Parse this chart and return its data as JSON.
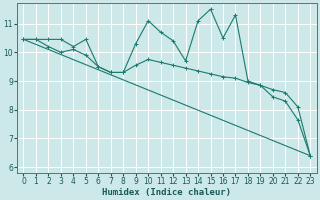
{
  "xlabel": "Humidex (Indice chaleur)",
  "bg_color": "#cce8e8",
  "line_color": "#1a7a6e",
  "grid_color": "#b8d8d8",
  "xlim": [
    -0.5,
    23.5
  ],
  "ylim": [
    5.8,
    11.7
  ],
  "yticks": [
    6,
    7,
    8,
    9,
    10,
    11
  ],
  "xticks": [
    0,
    1,
    2,
    3,
    4,
    5,
    6,
    7,
    8,
    9,
    10,
    11,
    12,
    13,
    14,
    15,
    16,
    17,
    18,
    19,
    20,
    21,
    22,
    23
  ],
  "series1_x": [
    0,
    1,
    2,
    3,
    4,
    5,
    6,
    7,
    8,
    9,
    10,
    11,
    12,
    13,
    14,
    15,
    16,
    17,
    18,
    19,
    20,
    21,
    22,
    23
  ],
  "series1_y": [
    10.45,
    10.45,
    10.45,
    10.45,
    10.2,
    10.45,
    9.5,
    9.3,
    9.3,
    10.3,
    11.1,
    10.7,
    10.4,
    9.7,
    11.1,
    11.5,
    10.5,
    11.3,
    9.0,
    8.85,
    8.45,
    8.3,
    7.65,
    6.4
  ],
  "series2_x": [
    0,
    1,
    2,
    3,
    4,
    5,
    6,
    7,
    8,
    9,
    10,
    11,
    12,
    13,
    14,
    15,
    16,
    17,
    18,
    19,
    20,
    21,
    22,
    23
  ],
  "series2_y": [
    10.45,
    10.45,
    10.2,
    10.0,
    10.1,
    9.9,
    9.5,
    9.3,
    9.3,
    9.55,
    9.75,
    9.65,
    9.55,
    9.45,
    9.35,
    9.25,
    9.15,
    9.1,
    8.95,
    8.85,
    8.7,
    8.6,
    8.1,
    6.4
  ],
  "series3_x": [
    0,
    23
  ],
  "series3_y": [
    10.45,
    6.4
  ]
}
